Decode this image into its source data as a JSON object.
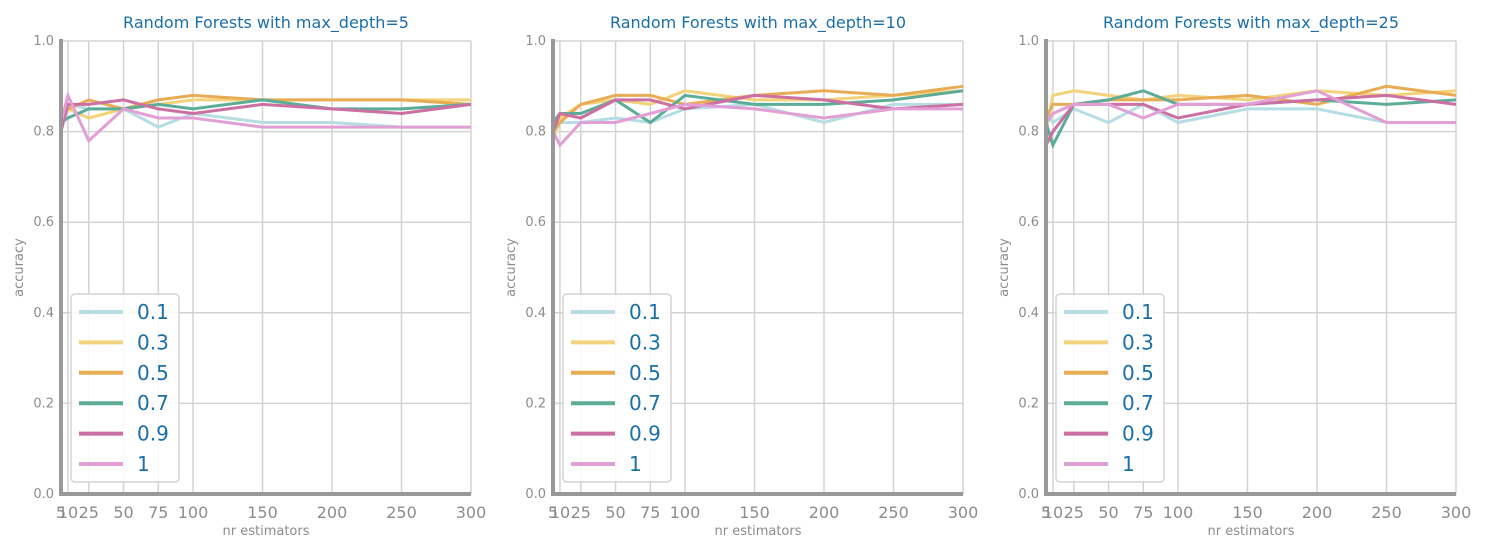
{
  "chart_data": [
    {
      "type": "line",
      "title": "Random Forests with max_depth=5",
      "xlabel": "nr estimators",
      "ylabel": "accuracy",
      "x": [
        5,
        10,
        25,
        50,
        75,
        100,
        150,
        200,
        250,
        300
      ],
      "xticks": [
        "5",
        "10",
        "25",
        "50",
        "75",
        "100",
        "150",
        "200",
        "250",
        "300"
      ],
      "ylim": [
        0.0,
        1.0
      ],
      "yticks": [
        "0.0",
        "0.2",
        "0.4",
        "0.6",
        "0.8",
        "1.0"
      ],
      "grid": true,
      "legend_position": "lower-left",
      "series": [
        {
          "name": "0.1",
          "color": "#b5dde3",
          "values": [
            0.84,
            0.86,
            0.85,
            0.85,
            0.81,
            0.84,
            0.82,
            0.82,
            0.81,
            0.81
          ]
        },
        {
          "name": "0.3",
          "color": "#f2d27a",
          "values": [
            0.83,
            0.85,
            0.83,
            0.85,
            0.86,
            0.87,
            0.87,
            0.87,
            0.87,
            0.87
          ]
        },
        {
          "name": "0.5",
          "color": "#e8ac55",
          "values": [
            0.84,
            0.85,
            0.87,
            0.85,
            0.87,
            0.88,
            0.87,
            0.87,
            0.87,
            0.86
          ]
        },
        {
          "name": "0.7",
          "color": "#5cac98",
          "values": [
            0.82,
            0.83,
            0.85,
            0.85,
            0.86,
            0.85,
            0.87,
            0.85,
            0.85,
            0.86
          ]
        },
        {
          "name": "0.9",
          "color": "#cc6fa3",
          "values": [
            0.8,
            0.86,
            0.86,
            0.87,
            0.85,
            0.84,
            0.86,
            0.85,
            0.84,
            0.86
          ]
        },
        {
          "name": "1",
          "color": "#e29fd6",
          "values": [
            0.82,
            0.88,
            0.78,
            0.85,
            0.83,
            0.83,
            0.81,
            0.81,
            0.81,
            0.81
          ]
        }
      ]
    },
    {
      "type": "line",
      "title": "Random Forests with max_depth=10",
      "xlabel": "nr estimators",
      "ylabel": "accuracy",
      "x": [
        5,
        10,
        25,
        50,
        75,
        100,
        150,
        200,
        250,
        300
      ],
      "xticks": [
        "5",
        "10",
        "25",
        "50",
        "75",
        "100",
        "150",
        "200",
        "250",
        "300"
      ],
      "ylim": [
        0.0,
        1.0
      ],
      "yticks": [
        "0.0",
        "0.2",
        "0.4",
        "0.6",
        "0.8",
        "1.0"
      ],
      "grid": true,
      "legend_position": "lower-left",
      "series": [
        {
          "name": "0.1",
          "color": "#b5dde3",
          "values": [
            0.79,
            0.82,
            0.82,
            0.83,
            0.82,
            0.85,
            0.86,
            0.82,
            0.86,
            0.86
          ]
        },
        {
          "name": "0.3",
          "color": "#f2d27a",
          "values": [
            0.78,
            0.83,
            0.86,
            0.87,
            0.86,
            0.89,
            0.87,
            0.87,
            0.88,
            0.89
          ]
        },
        {
          "name": "0.5",
          "color": "#e8ac55",
          "values": [
            0.8,
            0.82,
            0.86,
            0.88,
            0.88,
            0.86,
            0.88,
            0.89,
            0.88,
            0.9
          ]
        },
        {
          "name": "0.7",
          "color": "#5cac98",
          "values": [
            0.82,
            0.84,
            0.84,
            0.87,
            0.82,
            0.88,
            0.86,
            0.86,
            0.87,
            0.89
          ]
        },
        {
          "name": "0.9",
          "color": "#cc6fa3",
          "values": [
            0.8,
            0.84,
            0.83,
            0.87,
            0.87,
            0.85,
            0.88,
            0.87,
            0.85,
            0.86
          ]
        },
        {
          "name": "1",
          "color": "#e29fd6",
          "values": [
            0.8,
            0.77,
            0.82,
            0.82,
            0.84,
            0.86,
            0.85,
            0.83,
            0.85,
            0.85
          ]
        }
      ]
    },
    {
      "type": "line",
      "title": "Random Forests with max_depth=25",
      "xlabel": "nr estimators",
      "ylabel": "accuracy",
      "x": [
        5,
        10,
        25,
        50,
        75,
        100,
        150,
        200,
        250,
        300
      ],
      "xticks": [
        "5",
        "10",
        "25",
        "50",
        "75",
        "100",
        "150",
        "200",
        "250",
        "300"
      ],
      "ylim": [
        0.0,
        1.0
      ],
      "yticks": [
        "0.0",
        "0.2",
        "0.4",
        "0.6",
        "0.8",
        "1.0"
      ],
      "grid": true,
      "legend_position": "lower-left",
      "series": [
        {
          "name": "0.1",
          "color": "#b5dde3",
          "values": [
            0.84,
            0.82,
            0.85,
            0.82,
            0.86,
            0.82,
            0.85,
            0.85,
            0.82,
            0.82
          ]
        },
        {
          "name": "0.3",
          "color": "#f2d27a",
          "values": [
            0.8,
            0.88,
            0.89,
            0.88,
            0.87,
            0.88,
            0.87,
            0.89,
            0.88,
            0.89
          ]
        },
        {
          "name": "0.5",
          "color": "#e8ac55",
          "values": [
            0.83,
            0.86,
            0.86,
            0.87,
            0.87,
            0.87,
            0.88,
            0.86,
            0.9,
            0.88
          ]
        },
        {
          "name": "0.7",
          "color": "#5cac98",
          "values": [
            0.82,
            0.77,
            0.86,
            0.87,
            0.89,
            0.86,
            0.86,
            0.87,
            0.86,
            0.87
          ]
        },
        {
          "name": "0.9",
          "color": "#cc6fa3",
          "values": [
            0.77,
            0.8,
            0.86,
            0.86,
            0.86,
            0.83,
            0.86,
            0.87,
            0.88,
            0.86
          ]
        },
        {
          "name": "1",
          "color": "#e29fd6",
          "values": [
            0.82,
            0.84,
            0.86,
            0.86,
            0.83,
            0.86,
            0.86,
            0.89,
            0.82,
            0.82
          ]
        }
      ]
    }
  ]
}
